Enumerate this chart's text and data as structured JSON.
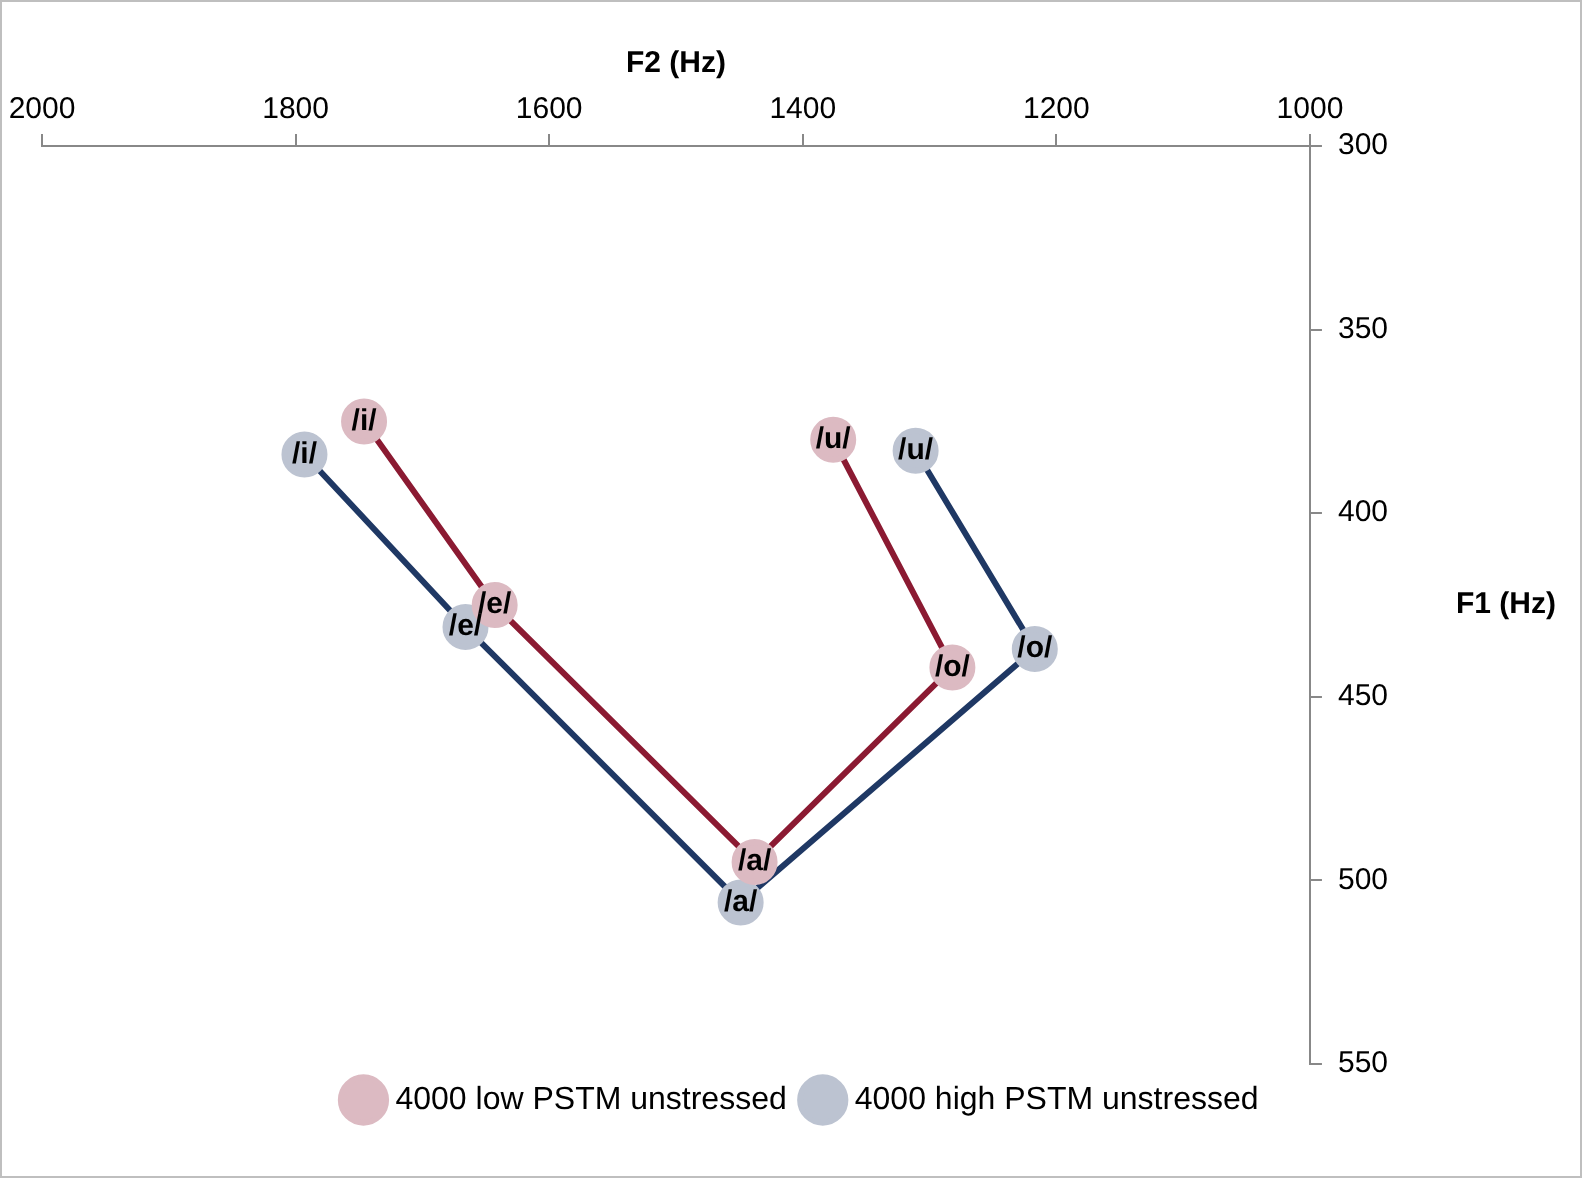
{
  "chart_data": {
    "type": "line",
    "xlabel": "F2 (Hz)",
    "ylabel": "F1 (Hz)",
    "xlim": [
      2000,
      1000
    ],
    "xticks": [
      2000,
      1800,
      1600,
      1400,
      1200,
      1000
    ],
    "ylim": [
      550,
      300
    ],
    "yticks": [
      300,
      350,
      400,
      450,
      500,
      550
    ],
    "marker": "circle",
    "legend": "bottom",
    "series": [
      {
        "name": "4000 low PSTM unstressed",
        "color": "#8b1a32",
        "x": [
          1746,
          1643,
          1438,
          1282,
          1376
        ],
        "values": [
          375,
          425,
          495,
          442,
          380
        ],
        "value_labels": [
          "/i/",
          "/e/",
          "/a/",
          "/o/",
          "/u/"
        ]
      },
      {
        "name": "4000 high PSTM unstressed",
        "color": "#1f3864",
        "x": [
          1793,
          1666,
          1449,
          1217,
          1311
        ],
        "values": [
          384,
          431,
          506,
          437,
          383
        ],
        "value_labels": [
          "/i/",
          "/e/",
          "/a/",
          "/o/",
          "/u/"
        ]
      }
    ]
  }
}
